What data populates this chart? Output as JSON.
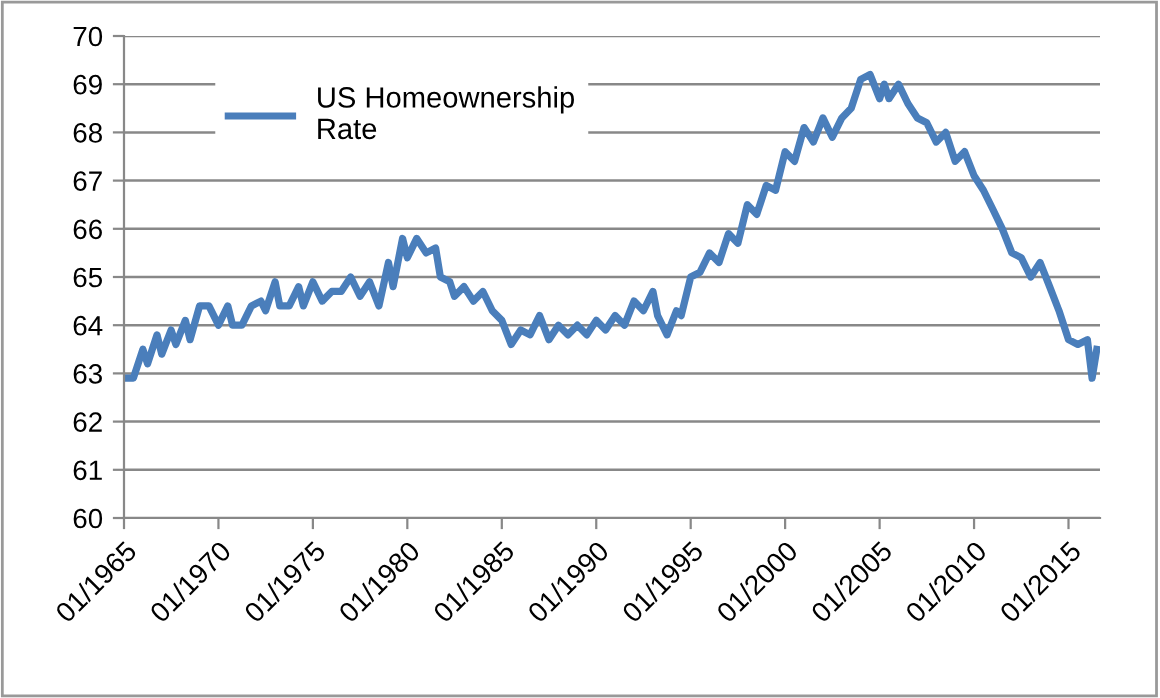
{
  "chart_data": {
    "type": "line",
    "x": [
      "1965-01",
      "1965-07",
      "1966-01",
      "1966-04",
      "1966-10",
      "1967-01",
      "1967-07",
      "1967-10",
      "1968-04",
      "1968-07",
      "1969-01",
      "1969-07",
      "1970-01",
      "1970-07",
      "1970-10",
      "1971-04",
      "1971-10",
      "1972-04",
      "1972-07",
      "1973-01",
      "1973-04",
      "1973-10",
      "1974-04",
      "1974-07",
      "1975-01",
      "1975-07",
      "1976-01",
      "1976-07",
      "1977-01",
      "1977-07",
      "1978-01",
      "1978-07",
      "1979-01",
      "1979-04",
      "1979-10",
      "1980-01",
      "1980-07",
      "1981-01",
      "1981-07",
      "1981-10",
      "1982-04",
      "1982-07",
      "1983-01",
      "1983-07",
      "1984-01",
      "1984-07",
      "1985-01",
      "1985-07",
      "1986-01",
      "1986-07",
      "1987-01",
      "1987-07",
      "1988-01",
      "1988-07",
      "1989-01",
      "1989-07",
      "1990-01",
      "1990-07",
      "1991-01",
      "1991-07",
      "1992-01",
      "1992-07",
      "1993-01",
      "1993-04",
      "1993-10",
      "1994-04",
      "1994-07",
      "1995-01",
      "1995-07",
      "1996-01",
      "1996-07",
      "1997-01",
      "1997-07",
      "1998-01",
      "1998-07",
      "1999-01",
      "1999-07",
      "2000-01",
      "2000-07",
      "2001-01",
      "2001-07",
      "2002-01",
      "2002-07",
      "2003-01",
      "2003-07",
      "2004-01",
      "2004-07",
      "2005-01",
      "2005-04",
      "2005-07",
      "2006-01",
      "2006-07",
      "2007-01",
      "2007-07",
      "2008-01",
      "2008-07",
      "2009-01",
      "2009-07",
      "2010-01",
      "2010-07",
      "2011-01",
      "2011-07",
      "2012-01",
      "2012-07",
      "2013-01",
      "2013-07",
      "2014-01",
      "2014-07",
      "2015-01",
      "2015-07",
      "2016-01",
      "2016-04",
      "2016-07"
    ],
    "series": [
      {
        "name": "US Homeownership Rate",
        "color": "#4a7ebb",
        "values": [
          62.9,
          62.9,
          63.5,
          63.2,
          63.8,
          63.4,
          63.9,
          63.6,
          64.1,
          63.7,
          64.4,
          64.4,
          64.0,
          64.4,
          64.0,
          64.0,
          64.4,
          64.5,
          64.3,
          64.9,
          64.4,
          64.4,
          64.8,
          64.4,
          64.9,
          64.5,
          64.7,
          64.7,
          65.0,
          64.6,
          64.9,
          64.4,
          65.3,
          64.8,
          65.8,
          65.4,
          65.8,
          65.5,
          65.6,
          65.0,
          64.9,
          64.6,
          64.8,
          64.5,
          64.7,
          64.3,
          64.1,
          63.6,
          63.9,
          63.8,
          64.2,
          63.7,
          64.0,
          63.8,
          64.0,
          63.8,
          64.1,
          63.9,
          64.2,
          64.0,
          64.5,
          64.3,
          64.7,
          64.2,
          63.8,
          64.3,
          64.2,
          65.0,
          65.1,
          65.5,
          65.3,
          65.9,
          65.7,
          66.5,
          66.3,
          66.9,
          66.8,
          67.6,
          67.4,
          68.1,
          67.8,
          68.3,
          67.9,
          68.3,
          68.5,
          69.1,
          69.2,
          68.7,
          69.0,
          68.7,
          69.0,
          68.6,
          68.3,
          68.2,
          67.8,
          68.0,
          67.4,
          67.6,
          67.1,
          66.8,
          66.4,
          66.0,
          65.5,
          65.4,
          65.0,
          65.3,
          64.8,
          64.3,
          63.7,
          63.6,
          63.7,
          62.9,
          63.5
        ]
      }
    ],
    "xlim": [
      "1965-01",
      "2016-09"
    ],
    "xticks": [
      {
        "value": "1965-01",
        "label": "01/1965"
      },
      {
        "value": "1970-01",
        "label": "01/1970"
      },
      {
        "value": "1975-01",
        "label": "01/1975"
      },
      {
        "value": "1980-01",
        "label": "01/1980"
      },
      {
        "value": "1985-01",
        "label": "01/1985"
      },
      {
        "value": "1990-01",
        "label": "01/1990"
      },
      {
        "value": "1995-01",
        "label": "01/1995"
      },
      {
        "value": "2000-01",
        "label": "01/2000"
      },
      {
        "value": "2005-01",
        "label": "01/2005"
      },
      {
        "value": "2010-01",
        "label": "01/2010"
      },
      {
        "value": "2015-01",
        "label": "01/2015"
      }
    ],
    "ylim": [
      60,
      70
    ],
    "yticks": [
      60,
      61,
      62,
      63,
      64,
      65,
      66,
      67,
      68,
      69,
      70
    ],
    "grid": "y",
    "legend": "top left",
    "marker": "none",
    "line_style": "solid"
  }
}
